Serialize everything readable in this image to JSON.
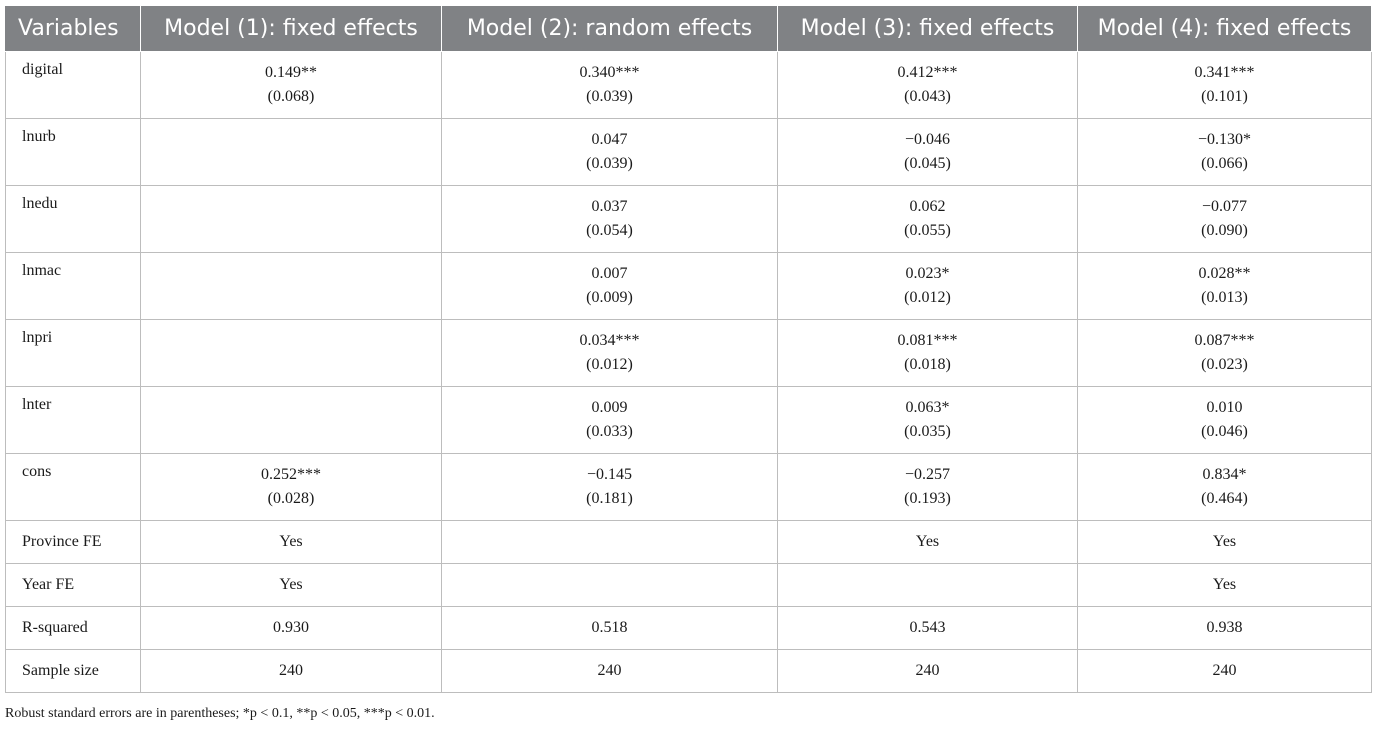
{
  "header": [
    "Variables",
    "Model (1): fixed effects",
    "Model (2): random effects",
    "Model (3): fixed effects",
    "Model (4): fixed effects"
  ],
  "rows": [
    {
      "label": "digital",
      "cells": [
        [
          "0.149**",
          "(0.068)"
        ],
        [
          "0.340***",
          "(0.039)"
        ],
        [
          "0.412***",
          "(0.043)"
        ],
        [
          "0.341***",
          "(0.101)"
        ]
      ]
    },
    {
      "label": "lnurb",
      "cells": [
        [
          "",
          ""
        ],
        [
          "0.047",
          "(0.039)"
        ],
        [
          "−0.046",
          "(0.045)"
        ],
        [
          "−0.130*",
          "(0.066)"
        ]
      ]
    },
    {
      "label": "lnedu",
      "cells": [
        [
          "",
          ""
        ],
        [
          "0.037",
          "(0.054)"
        ],
        [
          "0.062",
          "(0.055)"
        ],
        [
          "−0.077",
          "(0.090)"
        ]
      ]
    },
    {
      "label": "lnmac",
      "cells": [
        [
          "",
          ""
        ],
        [
          "0.007",
          "(0.009)"
        ],
        [
          "0.023*",
          "(0.012)"
        ],
        [
          "0.028**",
          "(0.013)"
        ]
      ]
    },
    {
      "label": "lnpri",
      "cells": [
        [
          "",
          ""
        ],
        [
          "0.034***",
          "(0.012)"
        ],
        [
          "0.081***",
          "(0.018)"
        ],
        [
          "0.087***",
          "(0.023)"
        ]
      ]
    },
    {
      "label": "lnter",
      "cells": [
        [
          "",
          ""
        ],
        [
          "0.009",
          "(0.033)"
        ],
        [
          "0.063*",
          "(0.035)"
        ],
        [
          "0.010",
          "(0.046)"
        ]
      ]
    },
    {
      "label": "cons",
      "cells": [
        [
          "0.252***",
          "(0.028)"
        ],
        [
          "−0.145",
          "(0.181)"
        ],
        [
          "−0.257",
          "(0.193)"
        ],
        [
          "0.834*",
          "(0.464)"
        ]
      ]
    }
  ],
  "summary_rows": [
    {
      "label": "Province FE",
      "cells": [
        "Yes",
        "",
        "Yes",
        "Yes"
      ]
    },
    {
      "label": "Year FE",
      "cells": [
        "Yes",
        "",
        "",
        "Yes"
      ]
    },
    {
      "label": "R-squared",
      "cells": [
        "0.930",
        "0.518",
        "0.543",
        "0.938"
      ]
    },
    {
      "label": "Sample size",
      "cells": [
        "240",
        "240",
        "240",
        "240"
      ]
    }
  ],
  "note": "Robust standard errors are in parentheses; *p < 0.1, **p < 0.05, ***p < 0.01."
}
